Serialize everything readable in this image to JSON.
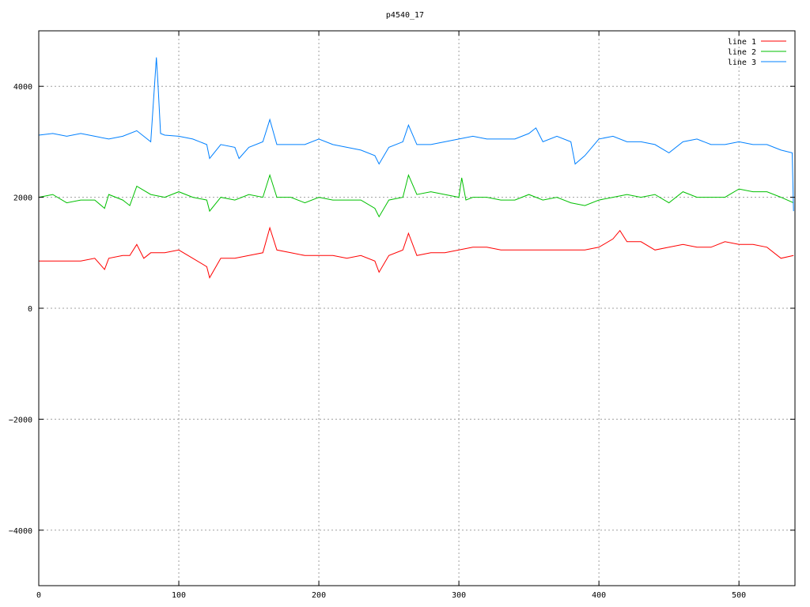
{
  "chart_data": {
    "type": "line",
    "title": "p4540_17",
    "xlabel": "",
    "ylabel": "",
    "xlim": [
      0,
      540
    ],
    "ylim": [
      -5000,
      5000
    ],
    "xticks": [
      0,
      100,
      200,
      300,
      400,
      500
    ],
    "yticks": [
      -4000,
      -2000,
      0,
      2000,
      4000
    ],
    "grid": true,
    "legend_position": "top-right",
    "series": [
      {
        "name": "line 1",
        "color": "#ff0000",
        "x": [
          0,
          10,
          20,
          30,
          40,
          47,
          50,
          60,
          65,
          70,
          75,
          80,
          90,
          100,
          110,
          120,
          122,
          130,
          140,
          150,
          160,
          165,
          170,
          180,
          190,
          200,
          210,
          220,
          230,
          240,
          243,
          250,
          260,
          264,
          270,
          280,
          290,
          300,
          310,
          320,
          330,
          340,
          350,
          360,
          370,
          380,
          390,
          400,
          410,
          415,
          420,
          430,
          440,
          450,
          460,
          470,
          480,
          490,
          500,
          510,
          520,
          530,
          539
        ],
        "y": [
          850,
          850,
          850,
          850,
          900,
          700,
          900,
          950,
          950,
          1150,
          900,
          1000,
          1000,
          1050,
          900,
          750,
          550,
          900,
          900,
          950,
          1000,
          1450,
          1050,
          1000,
          950,
          950,
          950,
          900,
          950,
          850,
          650,
          950,
          1050,
          1350,
          950,
          1000,
          1000,
          1050,
          1100,
          1100,
          1050,
          1050,
          1050,
          1050,
          1050,
          1050,
          1050,
          1100,
          1250,
          1400,
          1200,
          1200,
          1050,
          1100,
          1150,
          1100,
          1100,
          1200,
          1150,
          1150,
          1100,
          900,
          950
        ]
      },
      {
        "name": "line 2",
        "color": "#00c000",
        "x": [
          0,
          10,
          20,
          30,
          40,
          47,
          50,
          60,
          65,
          70,
          80,
          90,
          100,
          110,
          120,
          122,
          130,
          140,
          150,
          160,
          165,
          170,
          180,
          190,
          200,
          210,
          220,
          230,
          240,
          243,
          250,
          260,
          264,
          270,
          280,
          290,
          300,
          302,
          305,
          310,
          320,
          330,
          340,
          350,
          360,
          370,
          380,
          390,
          400,
          410,
          420,
          430,
          440,
          450,
          460,
          470,
          480,
          490,
          500,
          510,
          520,
          530,
          539
        ],
        "y": [
          2000,
          2050,
          1900,
          1950,
          1950,
          1800,
          2050,
          1950,
          1850,
          2200,
          2050,
          2000,
          2100,
          2000,
          1950,
          1750,
          2000,
          1950,
          2050,
          2000,
          2400,
          2000,
          2000,
          1900,
          2000,
          1950,
          1950,
          1950,
          1800,
          1650,
          1950,
          2000,
          2400,
          2050,
          2100,
          2050,
          2000,
          2350,
          1950,
          2000,
          2000,
          1950,
          1950,
          2050,
          1950,
          2000,
          1900,
          1850,
          1950,
          2000,
          2050,
          2000,
          2050,
          1900,
          2100,
          2000,
          2000,
          2000,
          2150,
          2100,
          2100,
          2000,
          1900
        ]
      },
      {
        "name": "line 3",
        "color": "#0080ff",
        "x": [
          0,
          10,
          20,
          30,
          40,
          50,
          60,
          70,
          80,
          84,
          85,
          87,
          90,
          100,
          110,
          120,
          122,
          130,
          140,
          143,
          150,
          160,
          165,
          170,
          180,
          190,
          200,
          210,
          220,
          230,
          240,
          243,
          250,
          260,
          264,
          270,
          280,
          290,
          300,
          310,
          320,
          330,
          340,
          350,
          355,
          360,
          370,
          380,
          383,
          390,
          400,
          410,
          420,
          430,
          440,
          450,
          460,
          470,
          480,
          490,
          500,
          510,
          520,
          530,
          538,
          539
        ],
        "y": [
          3120,
          3150,
          3100,
          3150,
          3100,
          3050,
          3100,
          3200,
          3000,
          4520,
          4100,
          3150,
          3120,
          3100,
          3050,
          2950,
          2700,
          2950,
          2900,
          2700,
          2900,
          3000,
          3400,
          2950,
          2950,
          2950,
          3050,
          2950,
          2900,
          2850,
          2750,
          2600,
          2900,
          3000,
          3300,
          2950,
          2950,
          3000,
          3050,
          3100,
          3050,
          3050,
          3050,
          3150,
          3250,
          3000,
          3100,
          3000,
          2600,
          2750,
          3050,
          3100,
          3000,
          3000,
          2950,
          2800,
          3000,
          3050,
          2950,
          2950,
          3000,
          2950,
          2950,
          2850,
          2800,
          1750
        ]
      }
    ]
  }
}
